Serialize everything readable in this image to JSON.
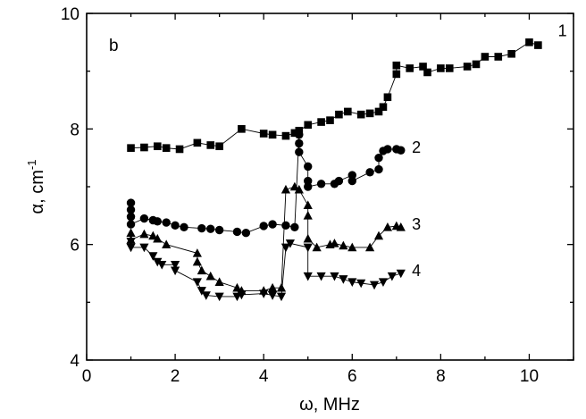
{
  "chart_data": {
    "type": "scatter",
    "panel_label": "b",
    "xlabel": "ω, MHz",
    "ylabel": "α, cm",
    "ylabel_superscript": "-1",
    "xlim": [
      0,
      11
    ],
    "ylim": [
      4,
      10
    ],
    "x_ticks": [
      0,
      2,
      4,
      6,
      8,
      10
    ],
    "x_tick_labels": [
      "0",
      "2",
      "4",
      "6",
      "8",
      "10"
    ],
    "y_ticks": [
      4,
      6,
      8,
      10
    ],
    "y_tick_labels": [
      "4",
      "6",
      "8",
      "10"
    ],
    "grid": false,
    "series": [
      {
        "name": "1",
        "marker": "square",
        "points": [
          [
            1.0,
            7.67
          ],
          [
            1.3,
            7.68
          ],
          [
            1.6,
            7.7
          ],
          [
            1.8,
            7.67
          ],
          [
            2.1,
            7.65
          ],
          [
            2.5,
            7.76
          ],
          [
            2.8,
            7.72
          ],
          [
            3.0,
            7.7
          ],
          [
            3.5,
            8.0
          ],
          [
            4.0,
            7.92
          ],
          [
            4.2,
            7.9
          ],
          [
            4.5,
            7.88
          ],
          [
            4.7,
            7.93
          ],
          [
            4.8,
            7.97
          ],
          [
            5.0,
            8.07
          ],
          [
            5.3,
            8.12
          ],
          [
            5.5,
            8.15
          ],
          [
            5.7,
            8.25
          ],
          [
            5.9,
            8.3
          ],
          [
            6.2,
            8.25
          ],
          [
            6.4,
            8.27
          ],
          [
            6.6,
            8.3
          ],
          [
            6.7,
            8.38
          ],
          [
            6.8,
            8.55
          ],
          [
            7.0,
            8.95
          ],
          [
            7.0,
            9.1
          ],
          [
            7.3,
            9.05
          ],
          [
            7.6,
            9.08
          ],
          [
            7.7,
            8.98
          ],
          [
            8.0,
            9.05
          ],
          [
            8.2,
            9.05
          ],
          [
            8.6,
            9.08
          ],
          [
            8.8,
            9.12
          ],
          [
            9.0,
            9.25
          ],
          [
            9.3,
            9.25
          ],
          [
            9.6,
            9.3
          ],
          [
            10.0,
            9.5
          ],
          [
            10.2,
            9.45
          ]
        ],
        "label": "1"
      },
      {
        "name": "2",
        "marker": "circle",
        "points": [
          [
            1.0,
            6.72
          ],
          [
            1.0,
            6.6
          ],
          [
            1.0,
            6.48
          ],
          [
            1.0,
            6.35
          ],
          [
            1.3,
            6.45
          ],
          [
            1.5,
            6.42
          ],
          [
            1.6,
            6.4
          ],
          [
            1.8,
            6.38
          ],
          [
            2.0,
            6.33
          ],
          [
            2.2,
            6.3
          ],
          [
            2.6,
            6.28
          ],
          [
            2.8,
            6.27
          ],
          [
            3.0,
            6.25
          ],
          [
            3.4,
            6.22
          ],
          [
            3.6,
            6.2
          ],
          [
            4.0,
            6.32
          ],
          [
            4.2,
            6.35
          ],
          [
            4.5,
            6.33
          ],
          [
            4.7,
            6.3
          ],
          [
            4.8,
            7.9
          ],
          [
            4.8,
            7.75
          ],
          [
            4.8,
            7.6
          ],
          [
            5.0,
            7.35
          ],
          [
            5.0,
            7.1
          ],
          [
            5.0,
            7.0
          ],
          [
            5.3,
            7.05
          ],
          [
            5.6,
            7.05
          ],
          [
            5.7,
            7.1
          ],
          [
            6.0,
            7.2
          ],
          [
            6.0,
            7.1
          ],
          [
            6.4,
            7.25
          ],
          [
            6.6,
            7.3
          ],
          [
            6.6,
            7.5
          ],
          [
            6.7,
            7.62
          ],
          [
            6.8,
            7.65
          ],
          [
            7.0,
            7.65
          ],
          [
            7.1,
            7.63
          ]
        ],
        "label": "2"
      },
      {
        "name": "3",
        "marker": "triangle-up",
        "points": [
          [
            1.0,
            6.2
          ],
          [
            1.0,
            6.08
          ],
          [
            1.3,
            6.18
          ],
          [
            1.5,
            6.15
          ],
          [
            1.6,
            6.1
          ],
          [
            1.8,
            6.0
          ],
          [
            2.5,
            5.85
          ],
          [
            2.5,
            5.7
          ],
          [
            2.6,
            5.55
          ],
          [
            2.8,
            5.45
          ],
          [
            3.0,
            5.35
          ],
          [
            3.4,
            5.25
          ],
          [
            3.5,
            5.2
          ],
          [
            4.0,
            5.2
          ],
          [
            4.2,
            5.25
          ],
          [
            4.4,
            5.25
          ],
          [
            4.5,
            6.95
          ],
          [
            4.7,
            7.0
          ],
          [
            4.8,
            6.95
          ],
          [
            5.0,
            6.68
          ],
          [
            5.0,
            6.5
          ],
          [
            5.0,
            6.1
          ],
          [
            5.2,
            5.95
          ],
          [
            5.5,
            6.0
          ],
          [
            5.6,
            6.02
          ],
          [
            5.8,
            5.98
          ],
          [
            6.0,
            5.95
          ],
          [
            6.4,
            5.95
          ],
          [
            6.6,
            6.15
          ],
          [
            6.8,
            6.3
          ],
          [
            7.0,
            6.32
          ],
          [
            7.1,
            6.3
          ]
        ],
        "label": "3"
      },
      {
        "name": "4",
        "marker": "triangle-down",
        "points": [
          [
            1.0,
            6.05
          ],
          [
            1.0,
            5.95
          ],
          [
            1.3,
            5.95
          ],
          [
            1.5,
            5.8
          ],
          [
            1.6,
            5.7
          ],
          [
            1.7,
            5.65
          ],
          [
            2.0,
            5.65
          ],
          [
            2.0,
            5.55
          ],
          [
            2.5,
            5.35
          ],
          [
            2.6,
            5.2
          ],
          [
            2.7,
            5.12
          ],
          [
            3.0,
            5.1
          ],
          [
            3.4,
            5.1
          ],
          [
            3.5,
            5.13
          ],
          [
            4.0,
            5.15
          ],
          [
            4.2,
            5.12
          ],
          [
            4.4,
            5.1
          ],
          [
            4.5,
            5.95
          ],
          [
            4.6,
            6.02
          ],
          [
            5.0,
            5.95
          ],
          [
            5.0,
            5.45
          ],
          [
            5.3,
            5.45
          ],
          [
            5.6,
            5.45
          ],
          [
            5.8,
            5.4
          ],
          [
            6.0,
            5.35
          ],
          [
            6.2,
            5.33
          ],
          [
            6.5,
            5.3
          ],
          [
            6.7,
            5.35
          ],
          [
            6.9,
            5.45
          ],
          [
            7.1,
            5.5
          ]
        ],
        "label": "4"
      }
    ]
  }
}
